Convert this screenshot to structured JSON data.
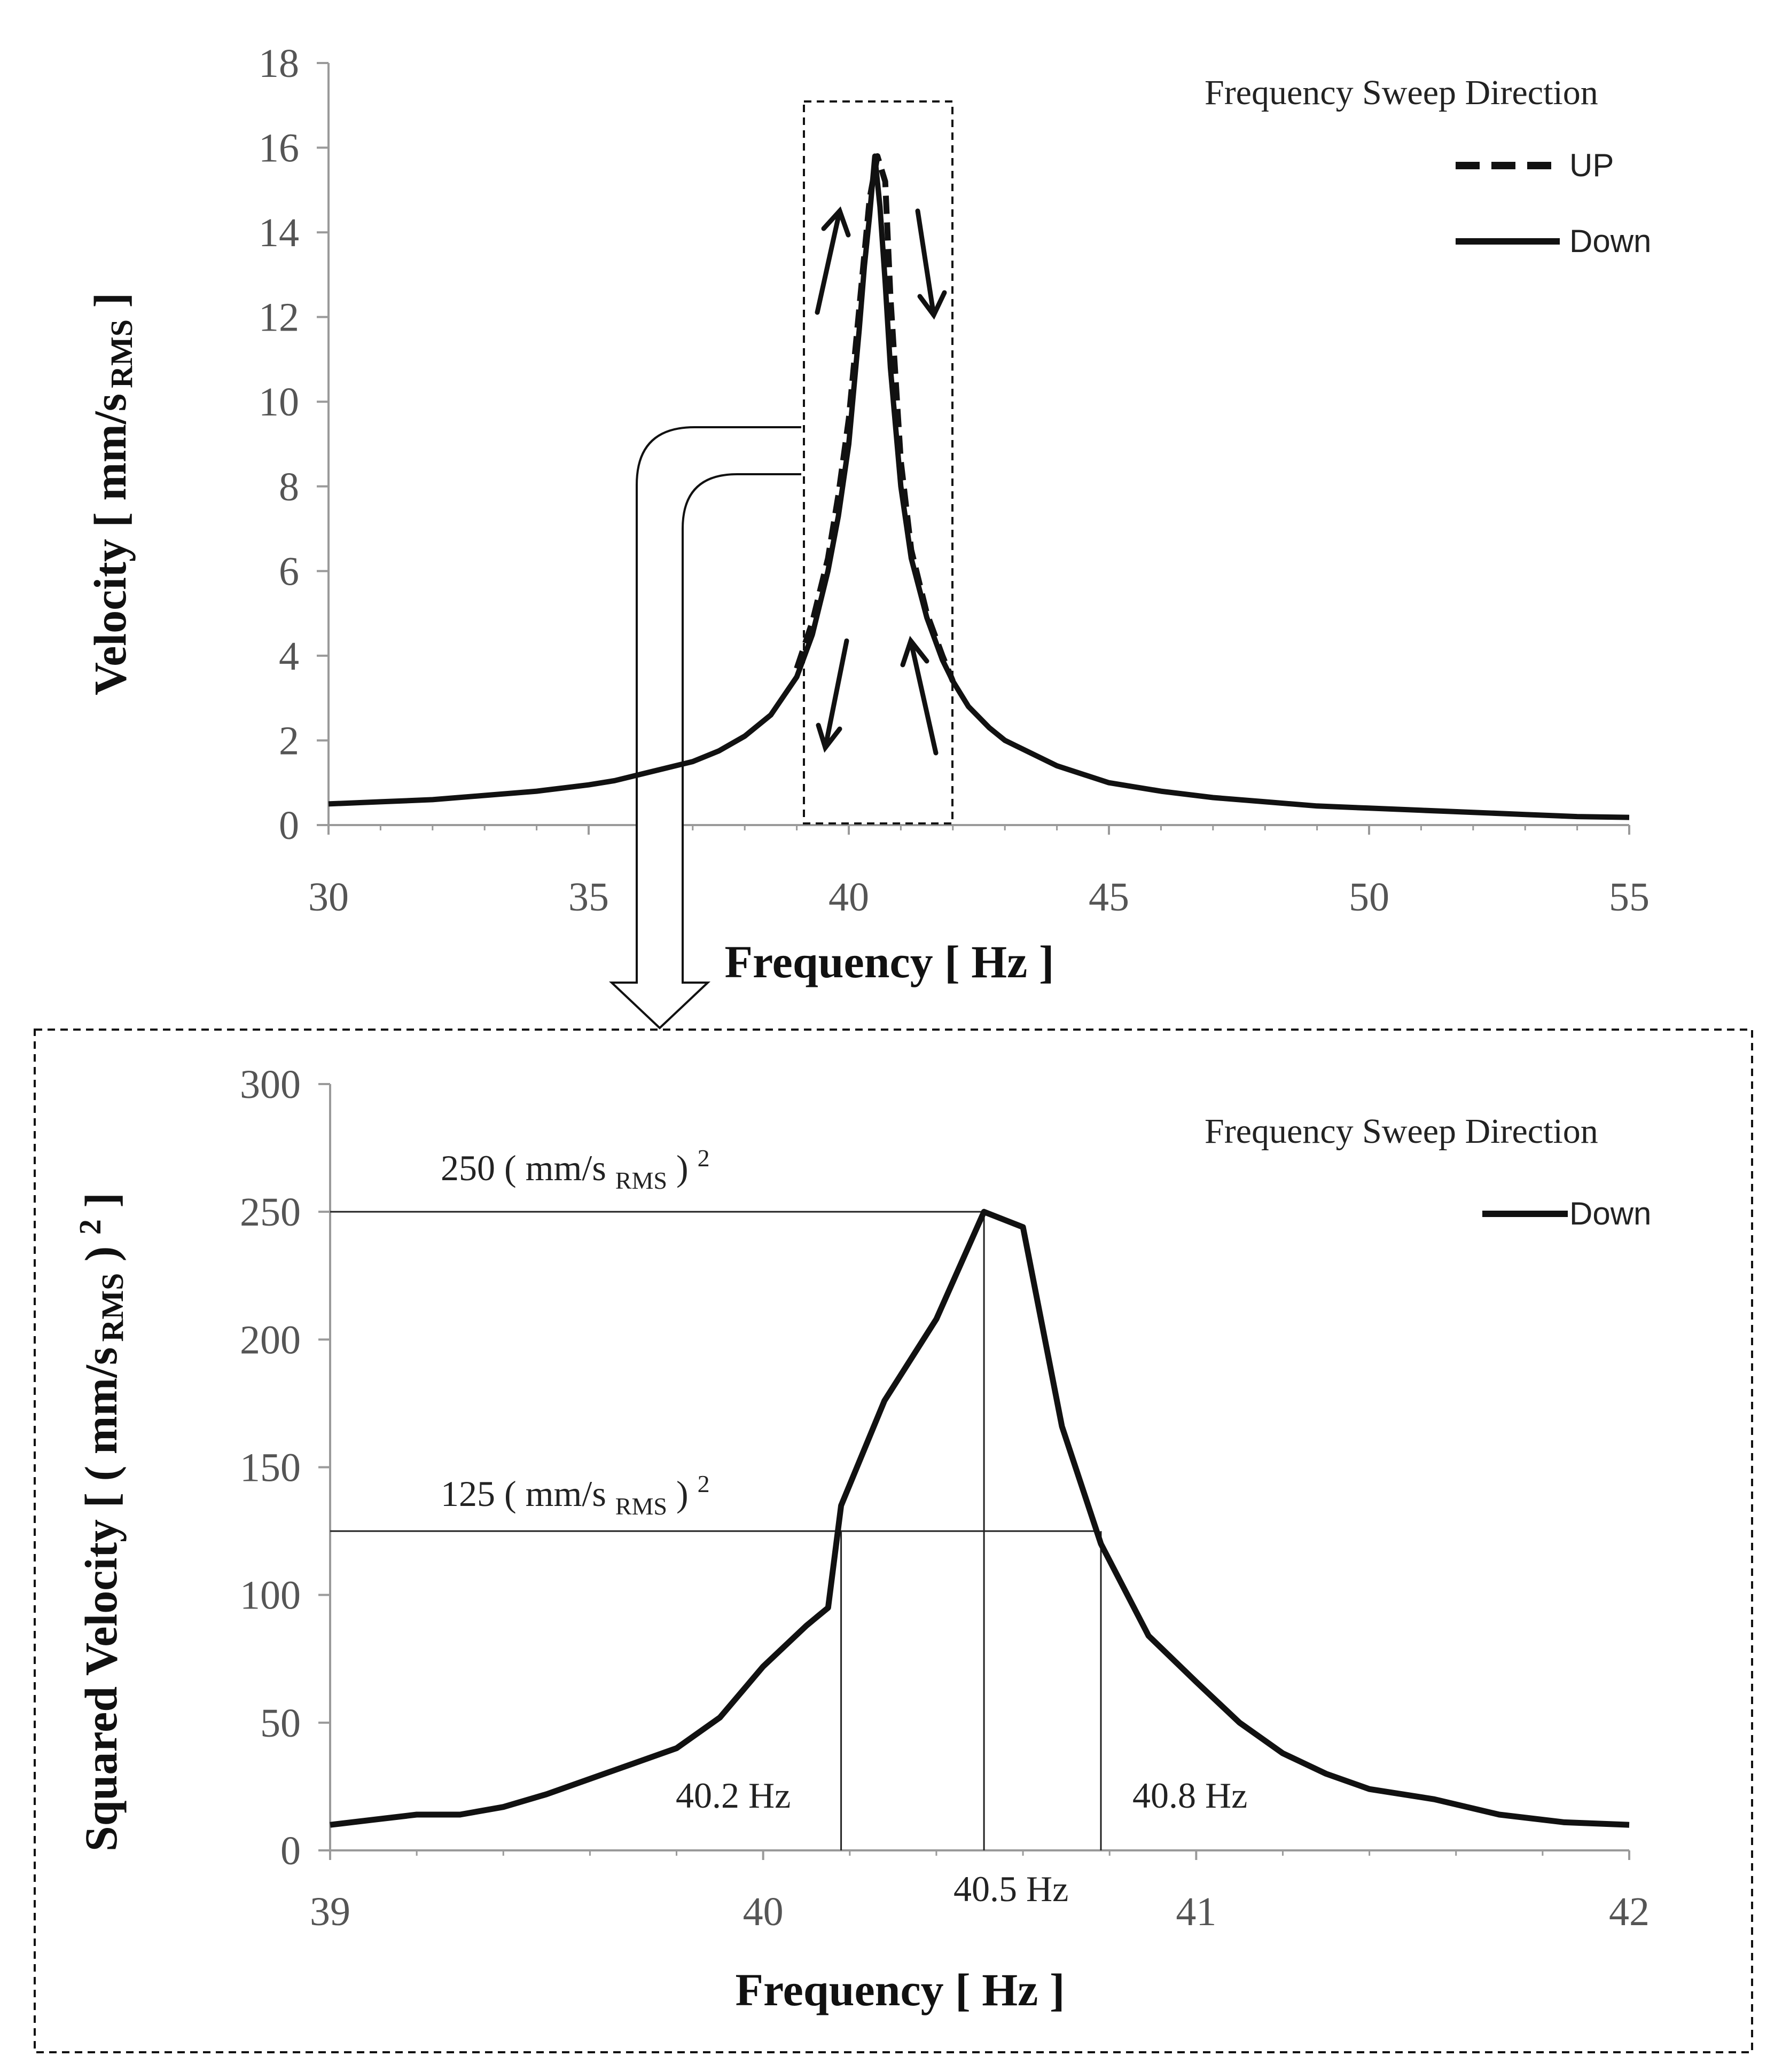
{
  "colors": {
    "line": "#111111",
    "axis": "#9a9a9a",
    "text": "#222222"
  },
  "chart_data": [
    {
      "type": "line",
      "title": "",
      "xlabel": "Frequency [ Hz ]",
      "ylabel_parts": {
        "main": "Velocity [ mm/s",
        "sub": "RMS",
        "end": " ]"
      },
      "xlim": [
        30,
        55
      ],
      "ylim": [
        0,
        18
      ],
      "x_ticks": [
        30,
        35,
        40,
        45,
        50,
        55
      ],
      "y_ticks": [
        0,
        2,
        4,
        6,
        8,
        10,
        12,
        14,
        16,
        18
      ],
      "legend": {
        "title": "Frequency Sweep Direction",
        "placement": "top-right",
        "entries": [
          {
            "label": "UP",
            "style": "dashed"
          },
          {
            "label": "Down",
            "style": "solid"
          }
        ]
      },
      "series": [
        {
          "name": "Down",
          "style": "solid",
          "x": [
            30,
            31,
            32,
            33,
            34,
            35,
            35.5,
            36,
            36.5,
            37,
            37.5,
            38,
            38.5,
            39,
            39.3,
            39.6,
            39.8,
            40,
            40.2,
            40.3,
            40.4,
            40.5,
            40.6,
            40.7,
            40.8,
            41,
            41.2,
            41.5,
            41.8,
            42,
            42.3,
            42.7,
            43,
            44,
            45,
            46,
            47,
            48,
            49,
            50,
            51,
            52,
            53,
            54,
            55
          ],
          "y": [
            0.5,
            0.55,
            0.6,
            0.7,
            0.8,
            0.95,
            1.05,
            1.2,
            1.35,
            1.5,
            1.75,
            2.1,
            2.6,
            3.5,
            4.5,
            6.0,
            7.3,
            9.0,
            11.7,
            13.2,
            14.4,
            15.8,
            14.6,
            12.8,
            10.8,
            8.0,
            6.3,
            4.9,
            3.9,
            3.4,
            2.8,
            2.3,
            2.0,
            1.4,
            1.0,
            0.8,
            0.65,
            0.55,
            0.45,
            0.4,
            0.35,
            0.3,
            0.25,
            0.2,
            0.18
          ]
        },
        {
          "name": "UP",
          "style": "dashed",
          "x": [
            39,
            39.3,
            39.6,
            39.8,
            40,
            40.2,
            40.4,
            40.55,
            40.7,
            40.8,
            41,
            41.2,
            41.5,
            41.8,
            42
          ],
          "y": [
            3.7,
            4.8,
            6.3,
            7.8,
            9.6,
            12.2,
            14.8,
            15.8,
            15.2,
            12.5,
            8.6,
            6.5,
            5.0,
            4.0,
            3.4
          ]
        }
      ],
      "annotations": {
        "arrows": [
          "up",
          "down",
          "down",
          "up"
        ]
      }
    },
    {
      "type": "line",
      "title": "",
      "xlabel": "Frequency [ Hz ]",
      "ylabel_parts": {
        "main": "Squared Velocity [ ( mm/s",
        "sub": "RMS",
        "end": " ) ",
        "sup": "2",
        "close": " ]"
      },
      "xlim": [
        39,
        42
      ],
      "ylim": [
        0,
        300
      ],
      "x_ticks": [
        39,
        40,
        41,
        42
      ],
      "y_ticks": [
        0,
        50,
        100,
        150,
        200,
        250,
        300
      ],
      "legend": {
        "title": "Frequency Sweep Direction",
        "placement": "top-right",
        "entries": [
          {
            "label": "Down",
            "style": "solid"
          }
        ]
      },
      "series": [
        {
          "name": "Down",
          "style": "solid",
          "x": [
            39,
            39.1,
            39.2,
            39.3,
            39.4,
            39.5,
            39.6,
            39.7,
            39.8,
            39.9,
            40,
            40.1,
            40.15,
            40.18,
            40.28,
            40.4,
            40.51,
            40.6,
            40.69,
            40.78,
            40.89,
            41,
            41.1,
            41.2,
            41.3,
            41.4,
            41.55,
            41.7,
            41.85,
            42
          ],
          "y": [
            10,
            12,
            14,
            14,
            17,
            22,
            28,
            34,
            40,
            52,
            72,
            88,
            95,
            135,
            176,
            208,
            250,
            244,
            166,
            120,
            84,
            66,
            50,
            38,
            30,
            24,
            20,
            14,
            11,
            10
          ]
        }
      ],
      "reference_lines": [
        {
          "value": 250,
          "label_main": "250 ( mm/s ",
          "label_sub": "RMS",
          "label_end": " ) ",
          "label_sup": "2"
        },
        {
          "value": 125,
          "label_main": "125 ( mm/s ",
          "label_sub": "RMS",
          "label_end": " ) ",
          "label_sup": "2"
        }
      ],
      "markers": [
        {
          "x": 40.18,
          "label": "40.2 Hz"
        },
        {
          "x": 40.51,
          "label": "40.5 Hz"
        },
        {
          "x": 40.78,
          "label": "40.8 Hz"
        }
      ]
    }
  ]
}
